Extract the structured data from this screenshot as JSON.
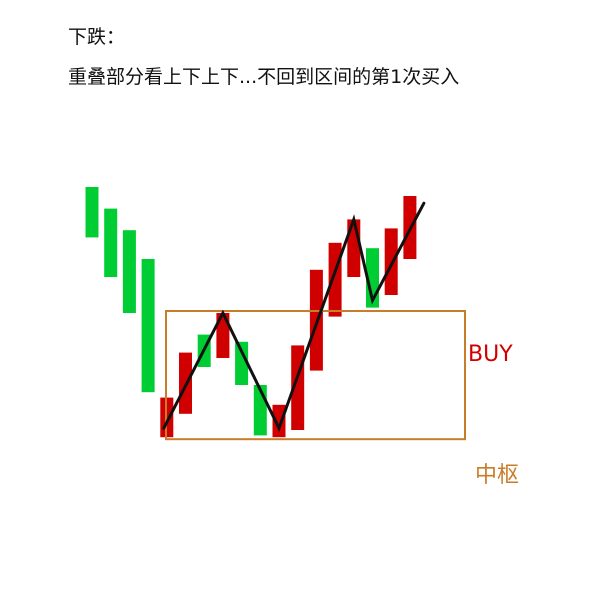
{
  "header": {
    "title": "下跌：",
    "subtitle": "重叠部分看上下上下...不回到区间的第1次买入"
  },
  "labels": {
    "buy": "BUY",
    "zone": "中枢"
  },
  "colors": {
    "up": "#d10000",
    "down": "#00cc33",
    "zone": "#c87d2a",
    "buy_text": "#d10000",
    "zone_text": "#c87d2a",
    "zigzag": "#111111"
  },
  "chart_data": {
    "type": "diagram",
    "description_none": "",
    "candles": [
      {
        "dir": "down",
        "high": 100,
        "low": 72
      },
      {
        "dir": "down",
        "high": 88,
        "low": 50
      },
      {
        "dir": "down",
        "high": 76,
        "low": 30
      },
      {
        "dir": "down",
        "high": 60,
        "low": -14
      },
      {
        "dir": "up",
        "high": -17,
        "low": -39
      },
      {
        "dir": "up",
        "high": 8,
        "low": -26
      },
      {
        "dir": "down",
        "high": 18,
        "low": 0
      },
      {
        "dir": "up",
        "high": 30,
        "low": 5
      },
      {
        "dir": "down",
        "high": 14,
        "low": -10
      },
      {
        "dir": "down",
        "high": -10,
        "low": -38
      },
      {
        "dir": "up",
        "high": -21,
        "low": -39
      },
      {
        "dir": "up",
        "high": 12,
        "low": -35
      },
      {
        "dir": "up",
        "high": 54,
        "low": -2
      },
      {
        "dir": "up",
        "high": 69,
        "low": 28
      },
      {
        "dir": "up",
        "high": 82,
        "low": 50
      },
      {
        "dir": "down",
        "high": 66,
        "low": 33
      },
      {
        "dir": "up",
        "high": 77,
        "low": 40
      },
      {
        "dir": "up",
        "high": 95,
        "low": 60
      }
    ],
    "zigzag_points": [
      {
        "candle": 4,
        "value": -34
      },
      {
        "candle": 7,
        "value": 30
      },
      {
        "candle": 10,
        "value": -34
      },
      {
        "candle": 14,
        "value": 82
      },
      {
        "candle": 15,
        "value": 37
      },
      {
        "candle": 17,
        "value": 91
      }
    ],
    "zone": {
      "top": 30,
      "bottom": -39,
      "from_candle": 4,
      "to_candle": 17
    }
  }
}
